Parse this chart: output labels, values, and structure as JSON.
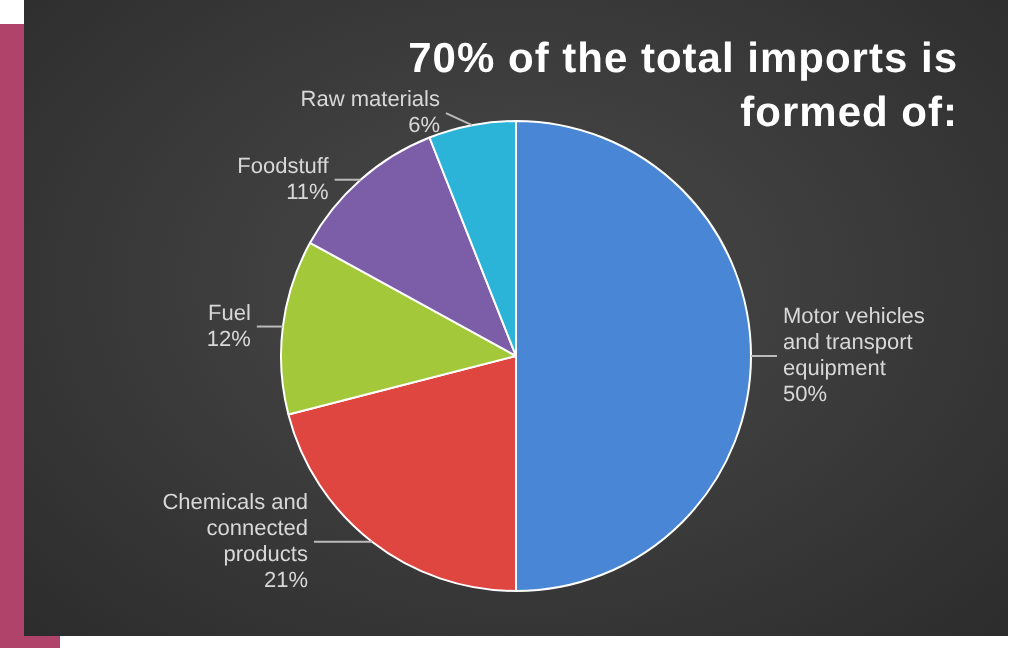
{
  "chart_data": {
    "type": "pie",
    "title": "70% of the total imports is formed of:",
    "categories": [
      "Motor vehicles and transport equipment",
      "Chemicals and connected products",
      "Fuel",
      "Foodstuff",
      "Raw materials"
    ],
    "values": [
      50,
      21,
      12,
      11,
      6
    ],
    "value_labels": [
      "50%",
      "21%",
      "12%",
      "11%",
      "6%"
    ],
    "colors": [
      "#4a86d6",
      "#df4640",
      "#a3c93a",
      "#7c5ea8",
      "#2cb4d8"
    ],
    "legend": false
  }
}
